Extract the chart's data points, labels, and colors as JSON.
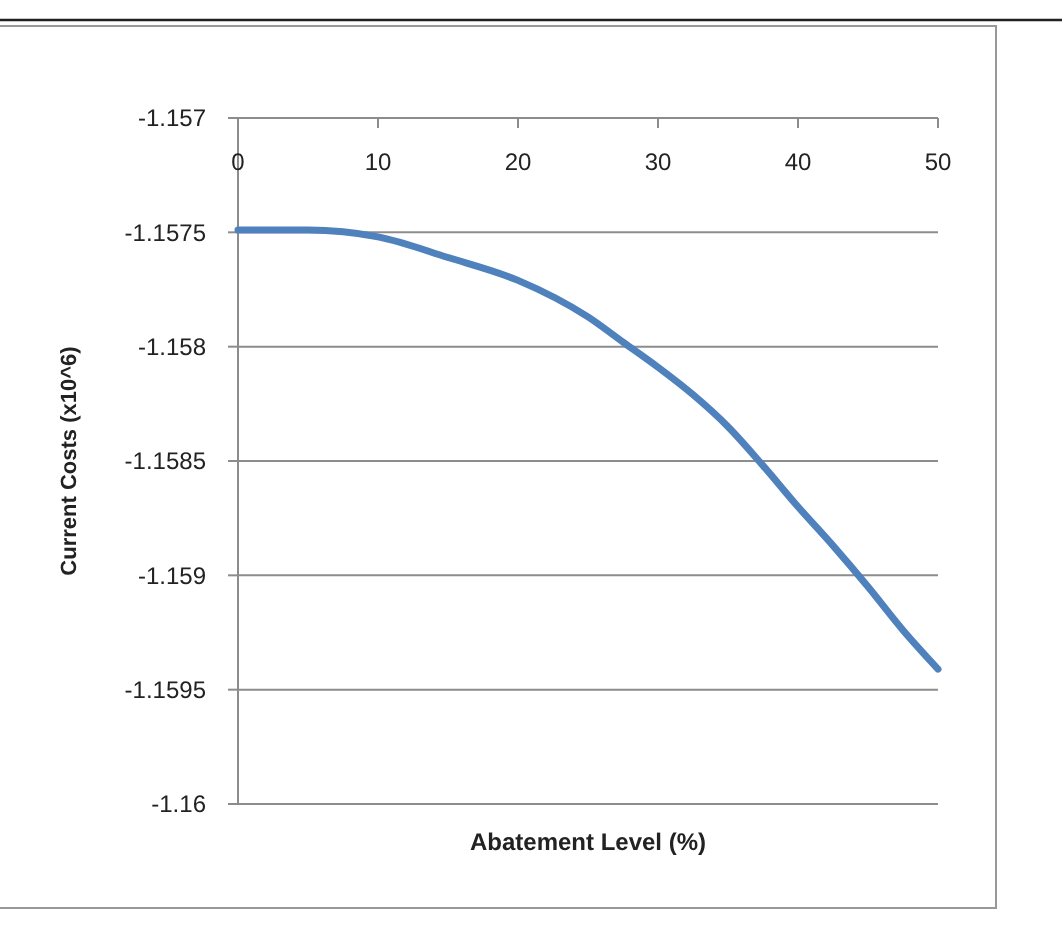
{
  "chart_data": {
    "type": "line",
    "xlabel": "Abatement Level (%)",
    "ylabel": "Current Costs  (x10^6)",
    "x": [
      0,
      5,
      10,
      15,
      20,
      25,
      27.5,
      30,
      32.5,
      35,
      37.5,
      40,
      42.5,
      45,
      47.5,
      50
    ],
    "series": [
      {
        "color": "#4f81bd",
        "values": [
          -1.15749,
          -1.15749,
          -1.15752,
          -1.15761,
          -1.15771,
          -1.15787,
          -1.15798,
          -1.15809,
          -1.15821,
          -1.15835,
          -1.15852,
          -1.1587,
          -1.15887,
          -1.15905,
          -1.15924,
          -1.15941
        ]
      }
    ],
    "xlim": [
      0,
      50
    ],
    "xticks": [
      0,
      10,
      20,
      30,
      40,
      50
    ],
    "ylim": [
      -1.16,
      -1.157
    ],
    "yticks": [
      -1.16,
      -1.1595,
      -1.159,
      -1.1585,
      -1.158,
      -1.1575,
      -1.157
    ],
    "grid": "y",
    "marker": "none",
    "line_style": "solid"
  }
}
